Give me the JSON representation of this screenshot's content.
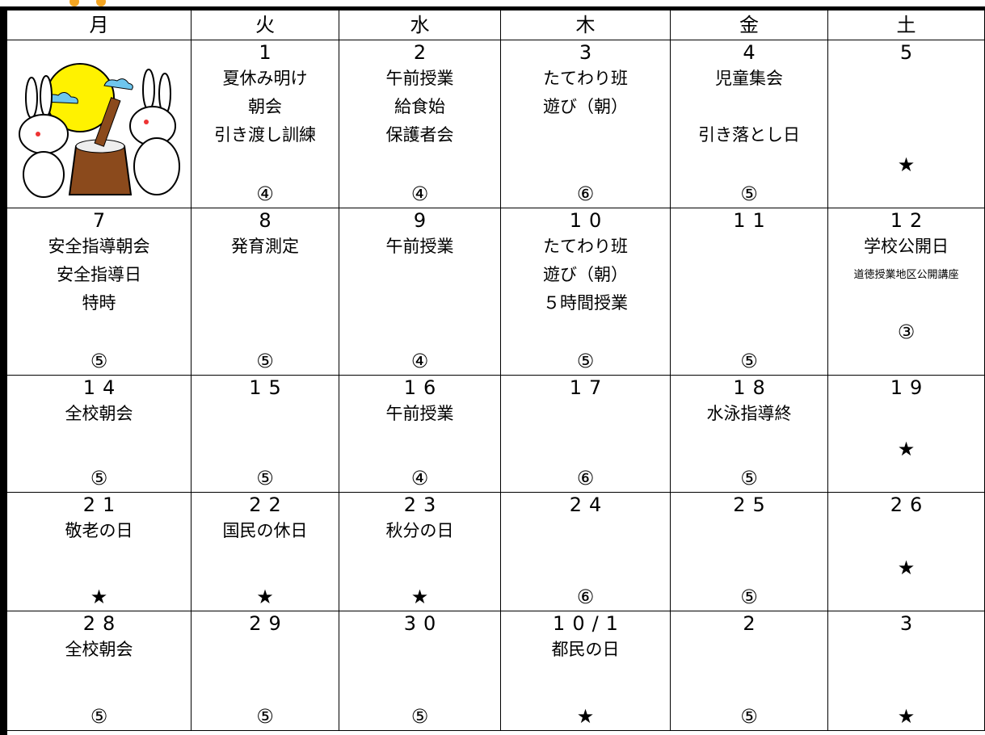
{
  "header": {
    "days": [
      "月",
      "火",
      "水",
      "木",
      "金",
      "土"
    ]
  },
  "weeks": [
    [
      {
        "date": "1",
        "lines": [
          "夏休み明け",
          "朝会",
          "引き渡し訓練"
        ],
        "mark": "④"
      },
      {
        "date": "2",
        "lines": [
          "午前授業",
          "給食始",
          "保護者会"
        ],
        "mark": "④"
      },
      {
        "date": "3",
        "lines": [
          "たてわり班",
          "遊び（朝）"
        ],
        "mark": "⑥"
      },
      {
        "date": "4",
        "lines": [
          "児童集会",
          "引き落とし日"
        ],
        "mark": "⑤"
      },
      {
        "date": "5",
        "mark": "★"
      }
    ],
    [
      {
        "date": "7",
        "lines": [
          "安全指導朝会",
          "安全指導日",
          "特時"
        ],
        "mark": "⑤"
      },
      {
        "date": "8",
        "lines": [
          "発育測定"
        ],
        "mark": "⑤"
      },
      {
        "date": "9",
        "lines": [
          "午前授業"
        ],
        "mark": "④"
      },
      {
        "date": "10",
        "lines": [
          "たてわり班",
          "遊び（朝）",
          "５時間授業"
        ],
        "mark": "⑤"
      },
      {
        "date": "11",
        "mark": "⑤"
      },
      {
        "date": "12",
        "lines": [
          "学校公開日",
          "道徳授業地区公開講座"
        ],
        "mark": "③"
      }
    ],
    [
      {
        "date": "14",
        "lines": [
          "全校朝会"
        ],
        "mark": "⑤"
      },
      {
        "date": "15",
        "mark": "⑤"
      },
      {
        "date": "16",
        "lines": [
          "午前授業"
        ],
        "mark": "④"
      },
      {
        "date": "17",
        "mark": "⑥"
      },
      {
        "date": "18",
        "lines": [
          "水泳指導終"
        ],
        "mark": "⑤"
      },
      {
        "date": "19",
        "mark": "★"
      }
    ],
    [
      {
        "date": "21",
        "lines": [
          "敬老の日"
        ],
        "mark": "★"
      },
      {
        "date": "22",
        "lines": [
          "国民の休日"
        ],
        "mark": "★"
      },
      {
        "date": "23",
        "lines": [
          "秋分の日"
        ],
        "mark": "★"
      },
      {
        "date": "24",
        "mark": "⑥"
      },
      {
        "date": "25",
        "mark": "⑤"
      },
      {
        "date": "26",
        "mark": "★"
      }
    ],
    [
      {
        "date": "28",
        "lines": [
          "全校朝会"
        ],
        "mark": "⑤"
      },
      {
        "date": "29",
        "mark": "⑤"
      },
      {
        "date": "30",
        "mark": "⑤"
      },
      {
        "date": "10/1",
        "lines": [
          "都民の日"
        ],
        "mark": "★"
      },
      {
        "date": "2",
        "mark": "⑤"
      },
      {
        "date": "3",
        "mark": "★"
      }
    ]
  ]
}
